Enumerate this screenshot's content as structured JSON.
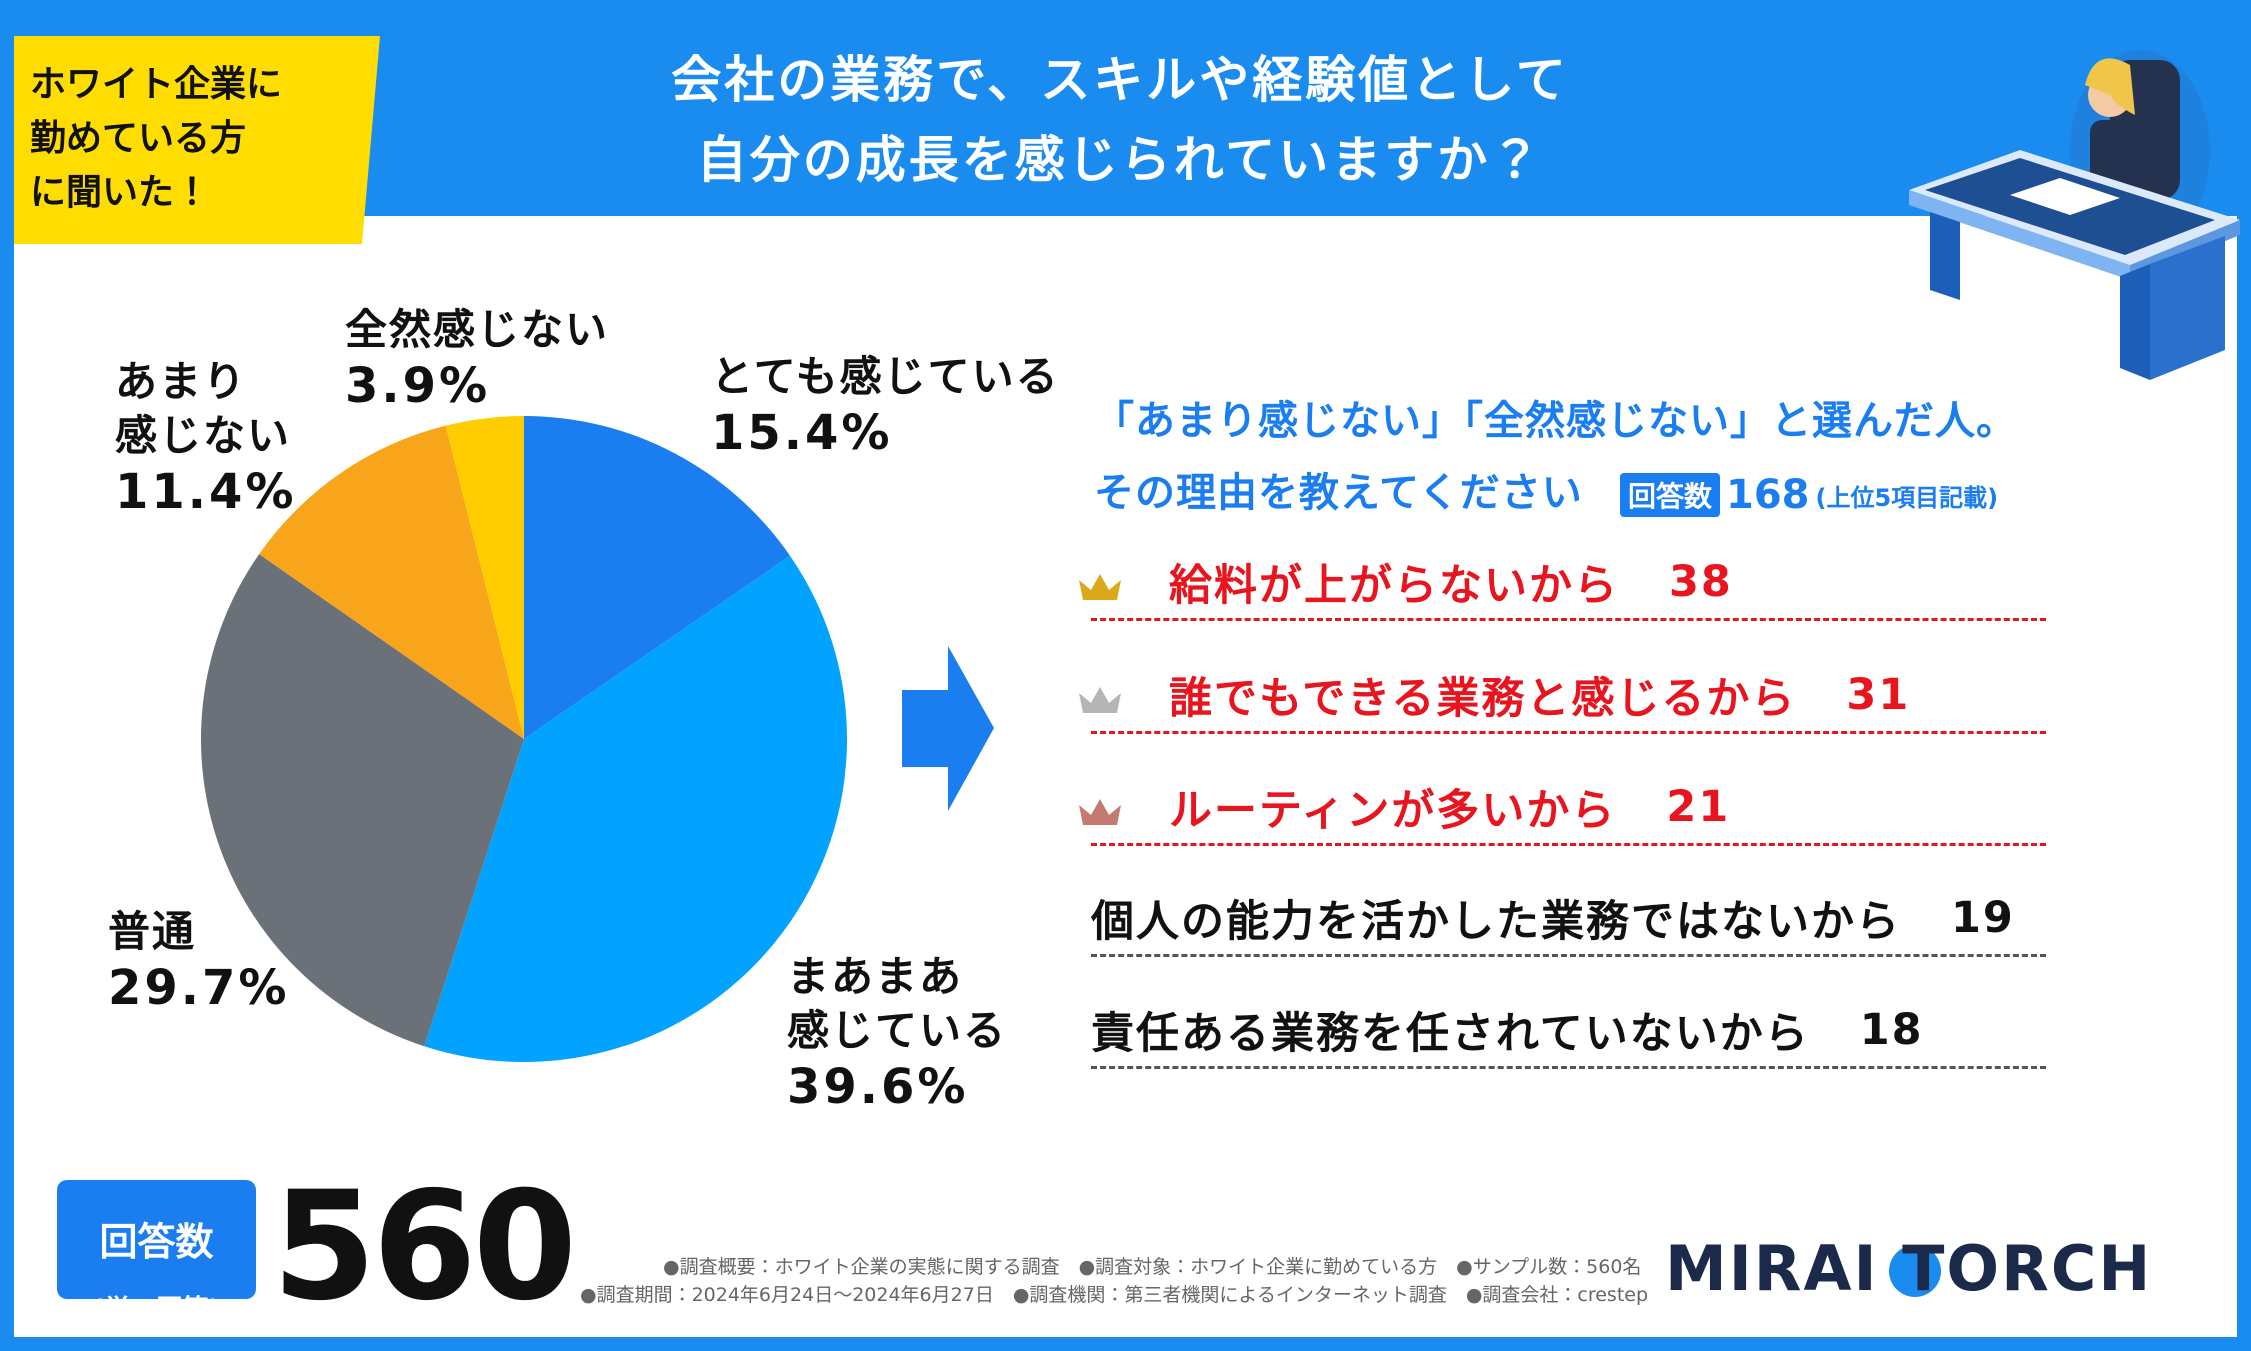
{
  "badge": "ホワイト企業に\n勤めている方\nに聞いた！",
  "title": "会社の業務で、スキルや経験値として\n自分の成長を感じられていますか？",
  "chart_data": {
    "type": "pie",
    "categories": [
      "とても感じている",
      "まあまあ\n感じている",
      "普通",
      "あまり\n感じない",
      "全然感じない"
    ],
    "values": [
      15.4,
      39.6,
      29.7,
      11.4,
      3.9
    ],
    "value_labels": [
      "15.4%",
      "39.6%",
      "29.7%",
      "11.4%",
      "3.9%"
    ],
    "colors": [
      "#1a7ef0",
      "#02a3ff",
      "#6b7178",
      "#f9a51b",
      "#ffcc00"
    ]
  },
  "question": {
    "text": "「あまり感じない」「全然感じない」と選んだ人。\nその理由を教えてください",
    "respondents_label": "回答数",
    "respondents": 168,
    "note": "(上位5項目記載)"
  },
  "reasons": [
    {
      "text": "給料が上がらないから",
      "count": 38
    },
    {
      "text": "誰でもできる業務と感じるから",
      "count": 31
    },
    {
      "text": "ルーティンが多いから",
      "count": 21
    },
    {
      "text": "個人の能力を活かした業務ではないから",
      "count": 19
    },
    {
      "text": "責任ある業務を任されていないから",
      "count": 18
    }
  ],
  "footer": {
    "total_label": "回答数",
    "total_sublabel": "(単一回答)",
    "total": 560,
    "notes": [
      "●調査概要：ホワイト企業の実態に関する調査　●調査対象：ホワイト企業に勤めている方　●サンプル数：560名",
      "●調査期間：2024年6月24日～2024年6月27日　●調査機関：第三者機関によるインターネット調査　●調査会社：crestep"
    ],
    "logo": "MIRAI TORCH"
  }
}
